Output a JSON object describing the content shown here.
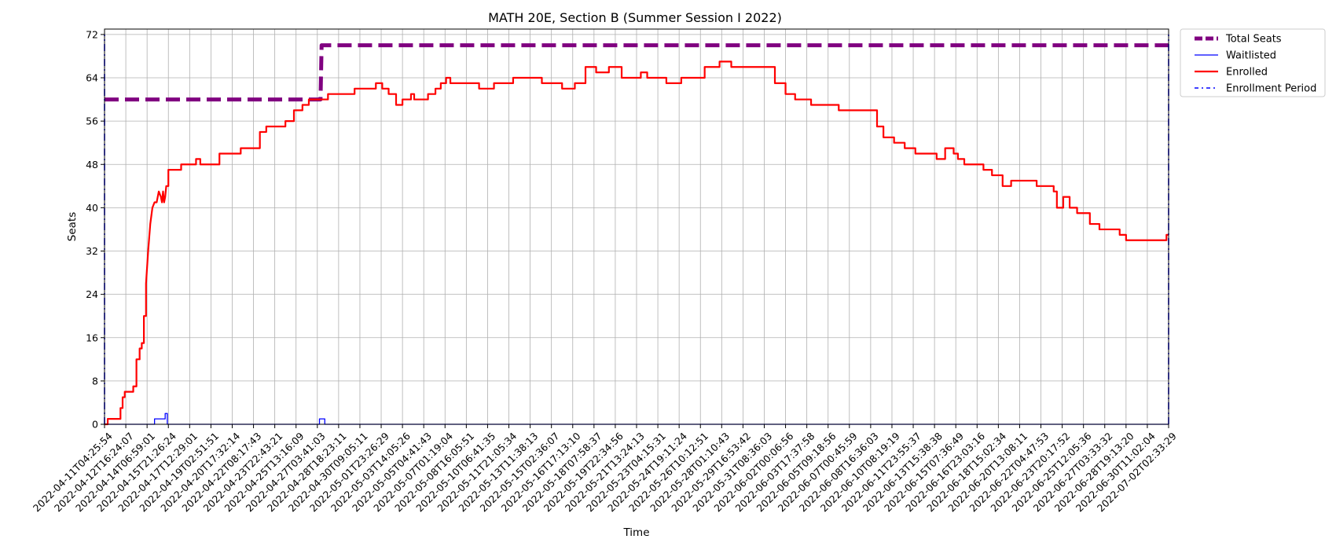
{
  "chart_data": {
    "type": "line",
    "title": "MATH 20E, Section B (Summer Session I 2022)",
    "xlabel": "Time",
    "ylabel": "Seats",
    "ylim": [
      0,
      73
    ],
    "yticks": [
      0,
      8,
      16,
      24,
      32,
      40,
      48,
      56,
      64,
      72
    ],
    "grid": true,
    "legend_position": "outside-top-right",
    "xticks": [
      "2022-04-11T04:25:54",
      "2022-04-12T16:24:07",
      "2022-04-14T06:59:01",
      "2022-04-15T21:26:24",
      "2022-04-17T12:29:01",
      "2022-04-19T02:51:51",
      "2022-04-20T17:32:14",
      "2022-04-22T08:17:43",
      "2022-04-23T22:43:21",
      "2022-04-25T13:16:09",
      "2022-04-27T03:41:03",
      "2022-04-28T18:23:11",
      "2022-04-30T09:05:11",
      "2022-05-01T23:26:29",
      "2022-05-03T14:05:26",
      "2022-05-05T04:41:43",
      "2022-05-07T01:19:04",
      "2022-05-08T16:05:51",
      "2022-05-10T06:41:35",
      "2022-05-11T21:05:34",
      "2022-05-13T11:38:13",
      "2022-05-15T02:36:07",
      "2022-05-16T17:13:10",
      "2022-05-18T07:58:37",
      "2022-05-19T22:34:56",
      "2022-05-21T13:24:13",
      "2022-05-23T04:15:31",
      "2022-05-24T19:11:24",
      "2022-05-26T10:12:51",
      "2022-05-28T01:10:43",
      "2022-05-29T16:53:42",
      "2022-05-31T08:36:03",
      "2022-06-02T00:06:56",
      "2022-06-03T17:37:58",
      "2022-06-05T09:18:56",
      "2022-06-07T00:45:59",
      "2022-06-08T16:36:03",
      "2022-06-10T08:19:19",
      "2022-06-11T23:55:37",
      "2022-06-13T15:38:38",
      "2022-06-15T07:36:49",
      "2022-06-16T23:03:16",
      "2022-06-18T15:02:34",
      "2022-06-20T13:08:11",
      "2022-06-22T04:47:53",
      "2022-06-23T20:17:52",
      "2022-06-25T12:05:36",
      "2022-06-27T03:33:32",
      "2022-06-28T19:13:20",
      "2022-06-30T11:02:04",
      "2022-07-02T02:33:29"
    ],
    "x_tick_positions": [
      0,
      1,
      2,
      3,
      4,
      5,
      6,
      7,
      8,
      9,
      10,
      11,
      12,
      13,
      14,
      15,
      16,
      17,
      18,
      19,
      20,
      21,
      22,
      23,
      24,
      25,
      26,
      27,
      28,
      29,
      30,
      31,
      32,
      33,
      34,
      35,
      36,
      37,
      38,
      39,
      40,
      41,
      42,
      43,
      44,
      45,
      46,
      47,
      48,
      49,
      50
    ],
    "xlim": [
      0,
      50
    ],
    "series": [
      {
        "name": "Total Seats",
        "color": "#800080",
        "style": "dashed-thick",
        "x": [
          0,
          10.15,
          10.2,
          50
        ],
        "y": [
          60,
          60,
          70,
          70
        ]
      },
      {
        "name": "Waitlisted",
        "color": "#0000ff",
        "style": "solid-thin",
        "x": [
          0,
          2.35,
          2.35,
          2.85,
          2.85,
          2.95,
          2.95,
          10.1,
          10.1,
          10.35,
          10.35,
          50
        ],
        "y": [
          0,
          0,
          1,
          1,
          2,
          2,
          0,
          0,
          1,
          1,
          0,
          0
        ]
      },
      {
        "name": "Enrolled",
        "color": "#ff0000",
        "style": "solid",
        "x": [
          0,
          0.15,
          0.15,
          0.75,
          0.75,
          0.85,
          0.85,
          0.95,
          0.95,
          1.35,
          1.35,
          1.5,
          1.5,
          1.65,
          1.65,
          1.75,
          1.75,
          1.85,
          1.85,
          1.95,
          1.95,
          2.05,
          2.15,
          2.25,
          2.35,
          2.45,
          2.55,
          2.65,
          2.7,
          2.75,
          2.8,
          2.85,
          2.9,
          3.0,
          3.0,
          3.6,
          3.6,
          4.3,
          4.3,
          4.5,
          4.5,
          5.4,
          5.4,
          6.4,
          6.4,
          7.3,
          7.3,
          7.6,
          7.6,
          8.5,
          8.5,
          8.9,
          8.9,
          9.3,
          9.3,
          9.6,
          9.6,
          10.0,
          10.0,
          10.5,
          10.5,
          11.75,
          11.75,
          11.95,
          11.95,
          12.75,
          12.75,
          13.05,
          13.05,
          13.35,
          13.35,
          13.7,
          13.7,
          14.0,
          14.0,
          14.4,
          14.4,
          14.55,
          14.55,
          15.2,
          15.2,
          15.55,
          15.55,
          15.8,
          15.8,
          16.05,
          16.05,
          16.25,
          16.25,
          17.05,
          17.05,
          17.6,
          17.6,
          18.3,
          18.3,
          19.2,
          19.2,
          20.55,
          20.55,
          21.5,
          21.5,
          22.1,
          22.1,
          22.6,
          22.6,
          23.1,
          23.1,
          23.7,
          23.7,
          24.3,
          24.3,
          25.2,
          25.2,
          25.5,
          25.5,
          26.4,
          26.4,
          27.1,
          27.1,
          28.2,
          28.2,
          28.9,
          28.9,
          29.45,
          29.45,
          30.2,
          30.2,
          31.5,
          31.5,
          32.0,
          32.0,
          32.45,
          32.45,
          32.7,
          32.7,
          33.2,
          33.2,
          34.5,
          34.5,
          35.0,
          35.0,
          36.3,
          36.3,
          36.6,
          36.6,
          37.1,
          37.1,
          37.6,
          37.6,
          38.1,
          38.1,
          39.1,
          39.1,
          39.5,
          39.5,
          39.9,
          39.9,
          40.1,
          40.1,
          40.4,
          40.4,
          41.3,
          41.3,
          41.7,
          41.7,
          42.2,
          42.2,
          42.6,
          42.6,
          43.8,
          43.8,
          44.6,
          44.6,
          44.75,
          44.75,
          45.05,
          45.05,
          45.35,
          45.35,
          45.7,
          45.7,
          46.3,
          46.3,
          46.75,
          46.75,
          47.7,
          47.7,
          48.0,
          48.0,
          49.9,
          49.9,
          50
        ],
        "y": [
          0,
          0,
          1,
          1,
          3,
          3,
          5,
          5,
          6,
          6,
          7,
          7,
          12,
          12,
          14,
          14,
          15,
          15,
          20,
          20,
          26,
          32,
          37,
          40,
          41,
          41,
          43,
          42,
          41,
          43,
          41,
          42,
          44,
          44,
          47,
          47,
          48,
          48,
          49,
          49,
          48,
          48,
          50,
          50,
          51,
          51,
          54,
          54,
          55,
          55,
          56,
          56,
          58,
          58,
          59,
          59,
          60,
          60,
          60,
          60,
          61,
          61,
          62,
          62,
          62,
          62,
          63,
          63,
          62,
          62,
          61,
          61,
          59,
          59,
          60,
          60,
          61,
          61,
          60,
          60,
          61,
          61,
          62,
          62,
          63,
          63,
          64,
          64,
          63,
          63,
          63,
          63,
          62,
          62,
          63,
          63,
          64,
          64,
          63,
          63,
          62,
          62,
          63,
          63,
          66,
          66,
          65,
          65,
          66,
          66,
          64,
          64,
          65,
          65,
          64,
          64,
          63,
          63,
          64,
          64,
          66,
          66,
          67,
          67,
          66,
          66,
          66,
          66,
          63,
          63,
          61,
          61,
          60,
          60,
          60,
          60,
          59,
          59,
          58,
          58,
          58,
          58,
          55,
          55,
          53,
          53,
          52,
          52,
          51,
          51,
          50,
          50,
          49,
          49,
          51,
          51,
          50,
          50,
          49,
          49,
          48,
          48,
          47,
          47,
          46,
          46,
          44,
          44,
          45,
          45,
          44,
          44,
          43,
          43,
          40,
          40,
          42,
          42,
          40,
          40,
          39,
          39,
          37,
          37,
          36,
          36,
          35,
          35,
          34,
          34,
          35,
          35
        ]
      },
      {
        "name": "Enrollment Period",
        "color": "#0000ff",
        "style": "dashdot-vertical",
        "x": [
          0,
          0,
          50,
          50
        ],
        "y": [
          0,
          72,
          0,
          72
        ]
      }
    ]
  }
}
